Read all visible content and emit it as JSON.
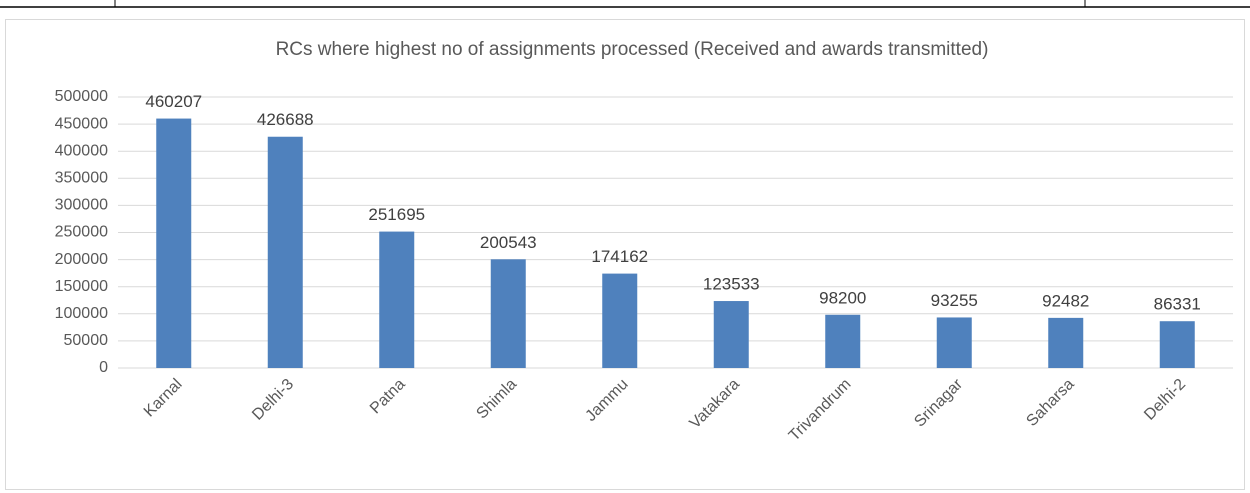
{
  "chart_data": {
    "type": "bar",
    "title": "RCs where highest no of assignments processed (Received and awards transmitted)",
    "categories": [
      "Karnal",
      "Delhi-3",
      "Patna",
      "Shimla",
      "Jammu",
      "Vatakara",
      "Trivandrum",
      "Srinagar",
      "Saharsa",
      "Delhi-2"
    ],
    "values": [
      460207,
      426688,
      251695,
      200543,
      174162,
      123533,
      98200,
      93255,
      92482,
      86331
    ],
    "color": "#4f81bd",
    "ylim": [
      0,
      500000
    ],
    "yticks": [
      0,
      50000,
      100000,
      150000,
      200000,
      250000,
      300000,
      350000,
      400000,
      450000,
      500000
    ],
    "grid": true
  }
}
